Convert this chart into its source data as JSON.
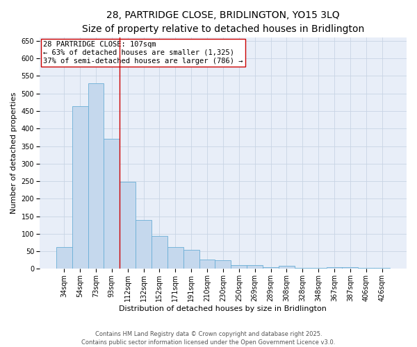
{
  "title_line1": "28, PARTRIDGE CLOSE, BRIDLINGTON, YO15 3LQ",
  "title_line2": "Size of property relative to detached houses in Bridlington",
  "xlabel": "Distribution of detached houses by size in Bridlington",
  "ylabel": "Number of detached properties",
  "categories": [
    "34sqm",
    "54sqm",
    "73sqm",
    "93sqm",
    "112sqm",
    "132sqm",
    "152sqm",
    "171sqm",
    "191sqm",
    "210sqm",
    "230sqm",
    "250sqm",
    "269sqm",
    "289sqm",
    "308sqm",
    "328sqm",
    "348sqm",
    "367sqm",
    "387sqm",
    "406sqm",
    "426sqm"
  ],
  "values": [
    62,
    463,
    530,
    370,
    248,
    140,
    93,
    62,
    54,
    26,
    25,
    10,
    11,
    5,
    8,
    3,
    3,
    5,
    4,
    3,
    3
  ],
  "bar_color": "#c5d8ed",
  "bar_edge_color": "#6aaed6",
  "vline_x": 3.5,
  "vline_color": "#cc0000",
  "annotation_line1": "28 PARTRIDGE CLOSE: 107sqm",
  "annotation_line2": "← 63% of detached houses are smaller (1,325)",
  "annotation_line3": "37% of semi-detached houses are larger (786) →",
  "annotation_box_color": "#ffffff",
  "annotation_box_edge": "#cc0000",
  "ylim": [
    0,
    660
  ],
  "yticks": [
    0,
    50,
    100,
    150,
    200,
    250,
    300,
    350,
    400,
    450,
    500,
    550,
    600,
    650
  ],
  "grid_color": "#c8d4e4",
  "bg_color": "#e8eef8",
  "footer_line1": "Contains HM Land Registry data © Crown copyright and database right 2025.",
  "footer_line2": "Contains public sector information licensed under the Open Government Licence v3.0.",
  "title_fontsize": 10,
  "subtitle_fontsize": 9,
  "axis_label_fontsize": 8,
  "tick_fontsize": 7,
  "annotation_fontsize": 7.5,
  "footer_fontsize": 6
}
